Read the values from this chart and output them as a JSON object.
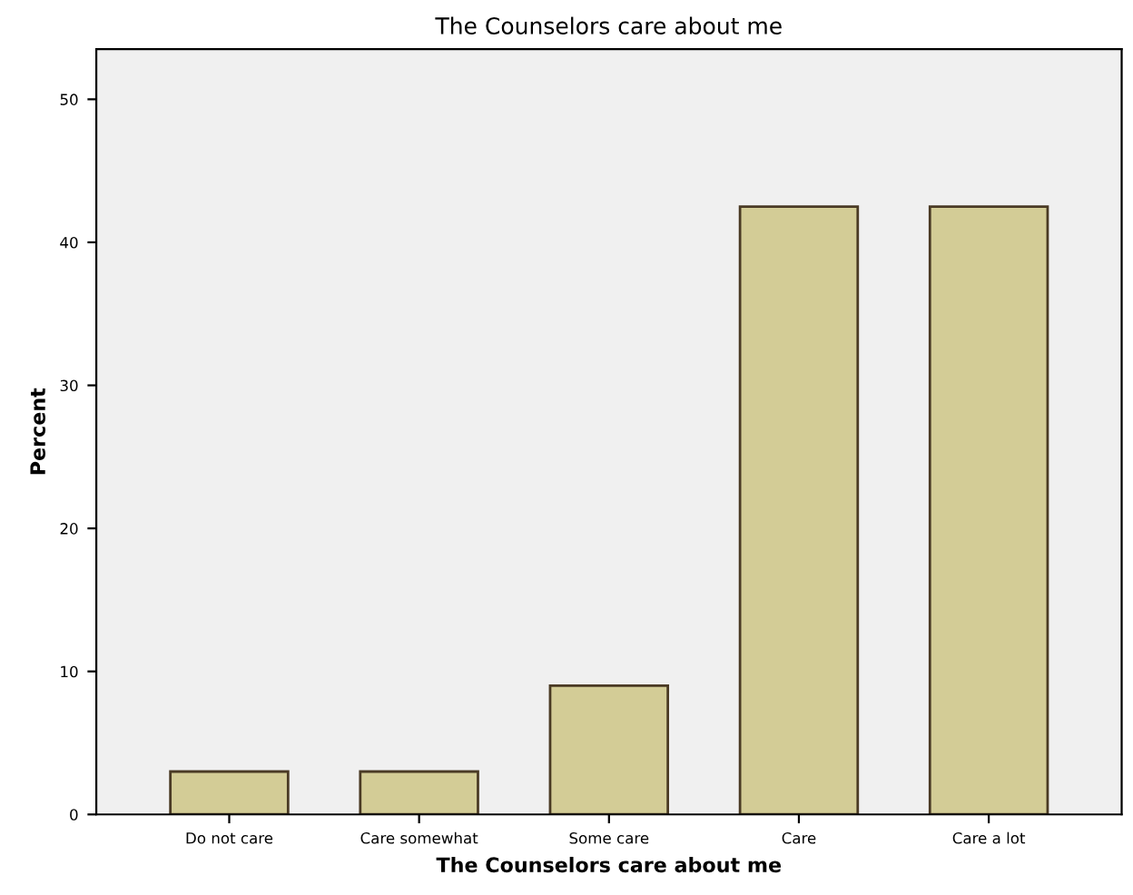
{
  "chart_data": {
    "type": "bar",
    "title": "The Counselors care about me",
    "xlabel": "The Counselors care about me",
    "ylabel": "Percent",
    "categories": [
      "Do not care",
      "Care somewhat",
      "Some care",
      "Care",
      "Care a lot"
    ],
    "values": [
      3.0,
      3.0,
      9.0,
      42.5,
      42.5
    ],
    "color": "#d3cc96",
    "ylim": [
      0,
      53.5
    ],
    "yticks": [
      0,
      10,
      20,
      30,
      40,
      50
    ],
    "grid": false
  }
}
